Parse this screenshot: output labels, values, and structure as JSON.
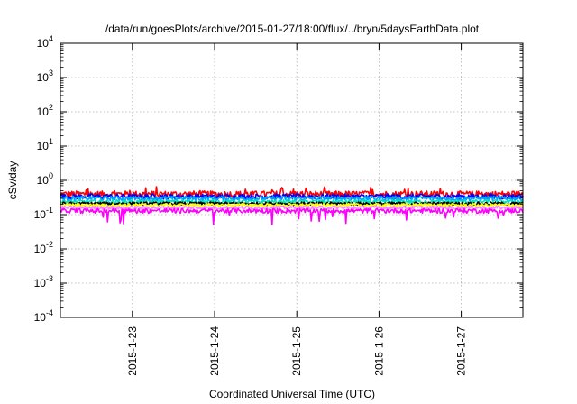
{
  "chart_data": {
    "type": "line",
    "title": "/data/run/goesPlots/archive/2015-01-27/18:00/flux/../bryn/5daysEarthData.plot",
    "xlabel": "Coordinated Universal Time (UTC)",
    "ylabel": "cSv/day",
    "y_scale": "log",
    "ylim": [
      0.0001,
      10000
    ],
    "y_ticks": [
      {
        "base": "10",
        "exp": "-4",
        "value": 0.0001
      },
      {
        "base": "10",
        "exp": "-3",
        "value": 0.001
      },
      {
        "base": "10",
        "exp": "-2",
        "value": 0.01
      },
      {
        "base": "10",
        "exp": "-1",
        "value": 0.1
      },
      {
        "base": "10",
        "exp": "0",
        "value": 1
      },
      {
        "base": "10",
        "exp": "1",
        "value": 10
      },
      {
        "base": "10",
        "exp": "2",
        "value": 100
      },
      {
        "base": "10",
        "exp": "3",
        "value": 1000
      },
      {
        "base": "10",
        "exp": "4",
        "value": 10000
      }
    ],
    "xlim": [
      "2015-01-22T03:00",
      "2015-01-27T18:00"
    ],
    "x_ticks": [
      {
        "label": "2015-1-23",
        "date": "2015-01-23T00:00"
      },
      {
        "label": "2015-1-24",
        "date": "2015-01-24T00:00"
      },
      {
        "label": "2015-1-25",
        "date": "2015-01-25T00:00"
      },
      {
        "label": "2015-1-26",
        "date": "2015-01-26T00:00"
      },
      {
        "label": "2015-1-27",
        "date": "2015-01-27T00:00"
      }
    ],
    "grid": true,
    "series": [
      {
        "color": "#ff0000",
        "level": 0.4,
        "noise": 0.1
      },
      {
        "color": "#0000ff",
        "level": 0.34,
        "noise": 0.08
      },
      {
        "color": "#00a0ff",
        "level": 0.3,
        "noise": 0.07
      },
      {
        "color": "#00e0c0",
        "level": 0.24,
        "noise": 0.06
      },
      {
        "color": "#000000",
        "level": 0.21,
        "noise": 0.05
      },
      {
        "color": "#ffff00",
        "level": 0.19,
        "noise": 0.05
      },
      {
        "color": "#ff80ff",
        "level": 0.16,
        "noise": 0.05
      },
      {
        "color": "#ff00ff",
        "level": 0.13,
        "noise": 0.07
      }
    ]
  }
}
